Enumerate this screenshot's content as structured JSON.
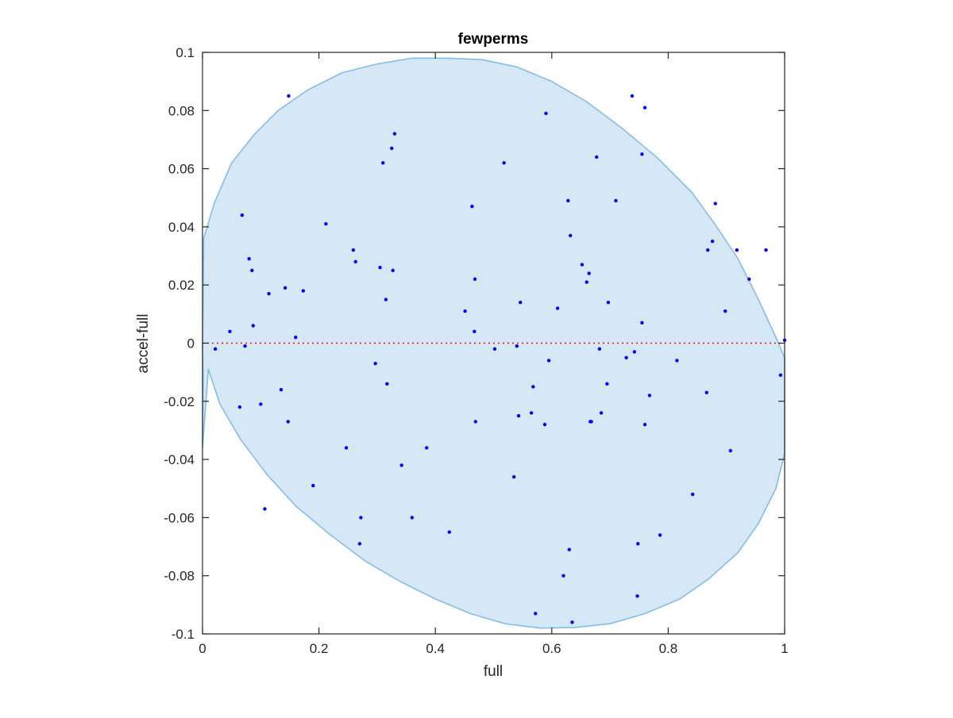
{
  "chart_data": {
    "type": "scatter",
    "title": "fewperms",
    "xlabel": "full",
    "ylabel": "accel-full",
    "xlim": [
      0,
      1
    ],
    "ylim": [
      -0.1,
      0.1
    ],
    "xticks": [
      0,
      0.2,
      0.4,
      0.6,
      0.8,
      1
    ],
    "xtick_labels": [
      "0",
      "0.2",
      "0.4",
      "0.6",
      "0.8",
      "1"
    ],
    "yticks": [
      -0.1,
      -0.08,
      -0.06,
      -0.04,
      -0.02,
      0,
      0.02,
      0.04,
      0.06,
      0.08,
      0.1
    ],
    "ytick_labels": [
      "-0.1",
      "-0.08",
      "-0.06",
      "-0.04",
      "-0.02",
      "0",
      "0.02",
      "0.04",
      "0.06",
      "0.08",
      "0.1"
    ],
    "grid": false,
    "colors": {
      "points": "#0000ff",
      "region_fill": "#d6e8f5",
      "region_stroke": "#86bde3",
      "zero_line": "#ff0000",
      "axis": "#262626"
    },
    "reference_line": {
      "y": 0,
      "style": "dotted"
    },
    "region": {
      "shape": "shaded ellipse-like region",
      "points": [
        [
          0.0,
          -0.036
        ],
        [
          0.001,
          -0.012
        ],
        [
          0.0,
          0.0
        ],
        [
          0.001,
          0.014
        ],
        [
          0.002,
          0.036
        ],
        [
          0.02,
          0.048
        ],
        [
          0.05,
          0.062
        ],
        [
          0.09,
          0.072
        ],
        [
          0.13,
          0.08
        ],
        [
          0.18,
          0.087
        ],
        [
          0.24,
          0.093
        ],
        [
          0.3,
          0.096
        ],
        [
          0.36,
          0.098
        ],
        [
          0.42,
          0.098
        ],
        [
          0.48,
          0.0975
        ],
        [
          0.54,
          0.095
        ],
        [
          0.6,
          0.09
        ],
        [
          0.66,
          0.083
        ],
        [
          0.72,
          0.074
        ],
        [
          0.78,
          0.064
        ],
        [
          0.84,
          0.052
        ],
        [
          0.88,
          0.041
        ],
        [
          0.92,
          0.029
        ],
        [
          0.955,
          0.015
        ],
        [
          0.985,
          0.002
        ],
        [
          1.0,
          -0.005
        ],
        [
          1.0,
          -0.038
        ],
        [
          0.985,
          -0.05
        ],
        [
          0.955,
          -0.062
        ],
        [
          0.92,
          -0.072
        ],
        [
          0.87,
          -0.081
        ],
        [
          0.82,
          -0.088
        ],
        [
          0.76,
          -0.093
        ],
        [
          0.7,
          -0.0965
        ],
        [
          0.64,
          -0.0978
        ],
        [
          0.58,
          -0.098
        ],
        [
          0.52,
          -0.0965
        ],
        [
          0.46,
          -0.093
        ],
        [
          0.4,
          -0.088
        ],
        [
          0.34,
          -0.082
        ],
        [
          0.28,
          -0.075
        ],
        [
          0.22,
          -0.066
        ],
        [
          0.16,
          -0.056
        ],
        [
          0.11,
          -0.045
        ],
        [
          0.065,
          -0.033
        ],
        [
          0.03,
          -0.021
        ],
        [
          0.01,
          -0.009
        ]
      ]
    },
    "series": [
      {
        "values": [
          [
            0.022,
            -0.002
          ],
          [
            0.047,
            0.004
          ],
          [
            0.064,
            -0.022
          ],
          [
            0.068,
            0.044
          ],
          [
            0.073,
            -0.001
          ],
          [
            0.08,
            0.029
          ],
          [
            0.085,
            0.025
          ],
          [
            0.087,
            0.006
          ],
          [
            0.1,
            -0.021
          ],
          [
            0.107,
            -0.057
          ],
          [
            0.114,
            0.017
          ],
          [
            0.135,
            -0.016
          ],
          [
            0.142,
            0.019
          ],
          [
            0.147,
            -0.027
          ],
          [
            0.148,
            0.085
          ],
          [
            0.16,
            0.002
          ],
          [
            0.173,
            0.018
          ],
          [
            0.19,
            -0.049
          ],
          [
            0.212,
            0.041
          ],
          [
            0.247,
            -0.036
          ],
          [
            0.259,
            0.032
          ],
          [
            0.263,
            0.028
          ],
          [
            0.27,
            -0.069
          ],
          [
            0.272,
            -0.06
          ],
          [
            0.297,
            -0.007
          ],
          [
            0.305,
            0.026
          ],
          [
            0.31,
            0.062
          ],
          [
            0.315,
            0.015
          ],
          [
            0.317,
            -0.014
          ],
          [
            0.325,
            0.067
          ],
          [
            0.327,
            0.025
          ],
          [
            0.33,
            0.072
          ],
          [
            0.342,
            -0.042
          ],
          [
            0.36,
            -0.06
          ],
          [
            0.385,
            -0.036
          ],
          [
            0.424,
            -0.065
          ],
          [
            0.451,
            0.011
          ],
          [
            0.463,
            0.047
          ],
          [
            0.467,
            0.004
          ],
          [
            0.468,
            0.022
          ],
          [
            0.469,
            -0.027
          ],
          [
            0.502,
            -0.002
          ],
          [
            0.518,
            0.062
          ],
          [
            0.535,
            -0.046
          ],
          [
            0.54,
            -0.001
          ],
          [
            0.543,
            -0.025
          ],
          [
            0.546,
            0.014
          ],
          [
            0.565,
            -0.024
          ],
          [
            0.568,
            -0.015
          ],
          [
            0.572,
            -0.093
          ],
          [
            0.588,
            -0.028
          ],
          [
            0.59,
            0.079
          ],
          [
            0.595,
            -0.006
          ],
          [
            0.61,
            0.012
          ],
          [
            0.62,
            -0.08
          ],
          [
            0.628,
            0.049
          ],
          [
            0.63,
            -0.071
          ],
          [
            0.632,
            0.037
          ],
          [
            0.635,
            -0.096
          ],
          [
            0.652,
            0.027
          ],
          [
            0.66,
            0.021
          ],
          [
            0.664,
            0.024
          ],
          [
            0.666,
            -0.027
          ],
          [
            0.668,
            -0.027
          ],
          [
            0.677,
            0.064
          ],
          [
            0.682,
            -0.002
          ],
          [
            0.685,
            -0.024
          ],
          [
            0.697,
            0.014
          ],
          [
            0.695,
            -0.014
          ],
          [
            0.71,
            0.049
          ],
          [
            0.728,
            -0.005
          ],
          [
            0.738,
            0.085
          ],
          [
            0.742,
            -0.003
          ],
          [
            0.748,
            -0.069
          ],
          [
            0.747,
            -0.087
          ],
          [
            0.755,
            0.065
          ],
          [
            0.755,
            0.007
          ],
          [
            0.76,
            0.081
          ],
          [
            0.76,
            -0.028
          ],
          [
            0.768,
            -0.018
          ],
          [
            0.786,
            -0.066
          ],
          [
            0.815,
            -0.006
          ],
          [
            0.842,
            -0.052
          ],
          [
            0.866,
            -0.017
          ],
          [
            0.868,
            0.032
          ],
          [
            0.876,
            0.035
          ],
          [
            0.881,
            0.048
          ],
          [
            0.898,
            0.011
          ],
          [
            0.907,
            -0.037
          ],
          [
            0.918,
            0.032
          ],
          [
            0.939,
            0.022
          ],
          [
            0.968,
            0.032
          ],
          [
            0.993,
            -0.011
          ],
          [
            1.0,
            0.001
          ]
        ]
      }
    ]
  }
}
